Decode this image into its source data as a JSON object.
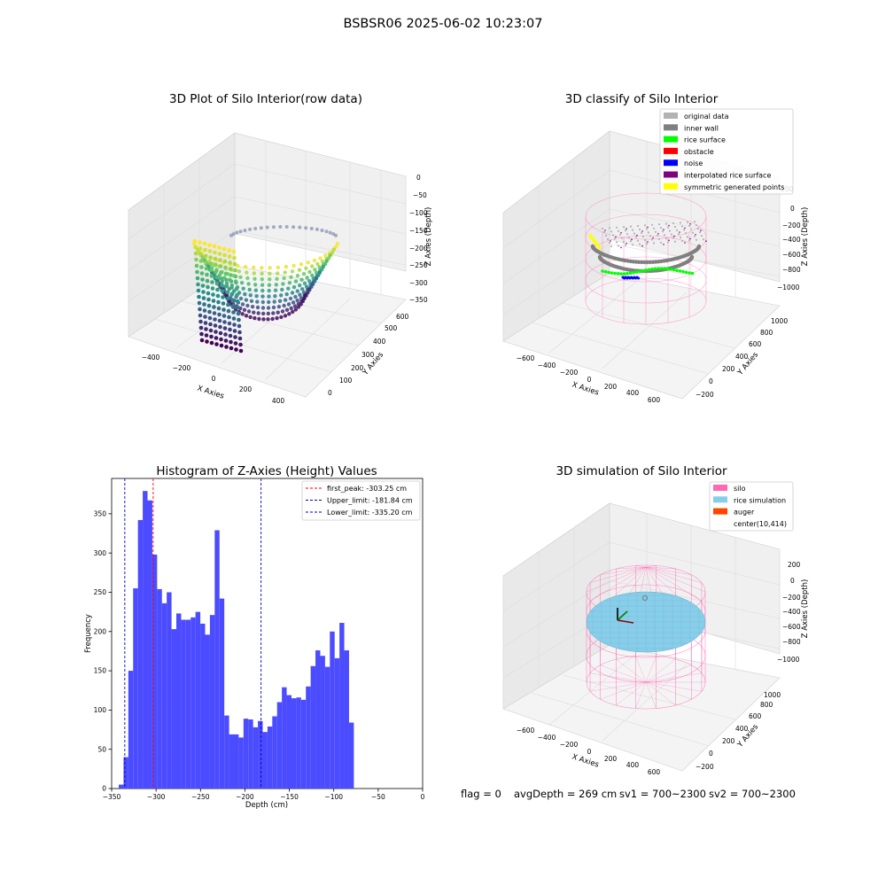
{
  "suptitle": "BSBSR06 2025-06-02 10:23:07",
  "footer": {
    "flag": "flag = 0",
    "avg_depth": "avgDepth = 269 cm",
    "sv1": "sv1 = 700~2300",
    "sv2": "sv2 = 700~2300"
  },
  "colors": {
    "histogram_bar": "#4b4bff",
    "first_peak_line": "#ff0000",
    "limit_lines": "#0000cc",
    "original_data": "#b3b3b3",
    "inner_wall": "#808080",
    "rice_surface": "#00ff00",
    "obstacle": "#ff0000",
    "noise": "#0000ff",
    "interpolated_rice_surface": "#800080",
    "symmetric_generated_points": "#ffff00",
    "silo": "#ff69b4",
    "rice_simulation": "#87ceeb",
    "auger": "#ff4500"
  },
  "chart_data": [
    {
      "type": "scatter",
      "title": "3D Plot of Silo Interior(row data)",
      "xlabel": "X Axies",
      "ylabel": "Y Axies",
      "zlabel": "Z Axies (Depth)",
      "x_ticks": [
        "−400",
        "−200",
        "0",
        "200",
        "400"
      ],
      "y_ticks": [
        "0",
        "100",
        "200",
        "300",
        "400",
        "500",
        "600"
      ],
      "z_ticks": [
        "0",
        "−50",
        "−100",
        "−150",
        "−200",
        "−250",
        "−300",
        "−350"
      ],
      "colormap": "viridis"
    },
    {
      "type": "scatter",
      "title": "3D classify of Silo Interior",
      "xlabel": "X Axies",
      "ylabel": "Y Axies",
      "zlabel": "Z Axies (Depth)",
      "x_ticks": [
        "−600",
        "−400",
        "−200",
        "0",
        "200",
        "400",
        "600"
      ],
      "y_ticks": [
        "−200",
        "0",
        "200",
        "400",
        "600",
        "800",
        "1000"
      ],
      "z_ticks": [
        "200",
        "0",
        "−200",
        "−400",
        "−600",
        "−800",
        "−1000"
      ],
      "legend": [
        {
          "label": "original data",
          "color": "#b3b3b3"
        },
        {
          "label": "inner wall",
          "color": "#808080"
        },
        {
          "label": "rice surface",
          "color": "#00ff00"
        },
        {
          "label": "obstacle",
          "color": "#ff0000"
        },
        {
          "label": "noise",
          "color": "#0000ff"
        },
        {
          "label": "interpolated rice surface",
          "color": "#800080"
        },
        {
          "label": "symmetric generated points",
          "color": "#ffff00"
        }
      ],
      "legend_placement": "upper right"
    },
    {
      "type": "bar",
      "title": "Histogram of Z-Axies (Height) Values",
      "xlabel": "Depth (cm)",
      "ylabel": "Frequency",
      "xlim": [
        -350,
        0
      ],
      "ylim": [
        0,
        395
      ],
      "x_ticks": [
        -350,
        -300,
        -250,
        -200,
        -150,
        -100,
        -50,
        0
      ],
      "x_tick_labels": [
        "−350",
        "−300",
        "−250",
        "−200",
        "−150",
        "−100",
        "−50",
        "0"
      ],
      "y_ticks": [
        0,
        50,
        100,
        150,
        200,
        250,
        300,
        350
      ],
      "bin_start": -342,
      "bin_width": 5.4,
      "values": [
        5,
        40,
        150,
        255,
        342,
        379,
        367,
        298,
        254,
        236,
        250,
        203,
        223,
        215,
        215,
        218,
        225,
        210,
        196,
        221,
        329,
        242,
        93,
        69,
        69,
        65,
        89,
        88,
        78,
        86,
        72,
        79,
        92,
        110,
        129,
        119,
        115,
        116,
        113,
        130,
        156,
        176,
        169,
        155,
        200,
        166,
        211,
        176,
        84
      ],
      "lines": [
        {
          "label": "first_peak: -303.25 cm",
          "x": -303.25,
          "color": "#ff0000"
        },
        {
          "label": "Upper_limit: -181.84 cm",
          "x": -181.84,
          "color": "#0000cc"
        },
        {
          "label": "Lower_limit: -335.20 cm",
          "x": -335.2,
          "color": "#0000cc"
        }
      ],
      "legend_placement": "upper right"
    },
    {
      "type": "surface",
      "title": "3D simulation of Silo Interior",
      "xlabel": "X Axies",
      "ylabel": "Y Axies",
      "zlabel": "Z Axies (Depth)",
      "x_ticks": [
        "−600",
        "−400",
        "−200",
        "0",
        "200",
        "400",
        "600"
      ],
      "y_ticks": [
        "−200",
        "0",
        "200",
        "400",
        "600",
        "800",
        "1000"
      ],
      "z_ticks": [
        "200",
        "0",
        "−200",
        "−400",
        "−600",
        "−800",
        "−1000"
      ],
      "legend": [
        {
          "label": "silo",
          "color": "#ff69b4"
        },
        {
          "label": "rice simulation",
          "color": "#87ceeb"
        },
        {
          "label": "auger",
          "color": "#ff4500"
        },
        {
          "label": "center(10,414)",
          "color": ""
        }
      ],
      "legend_placement": "upper right"
    }
  ]
}
